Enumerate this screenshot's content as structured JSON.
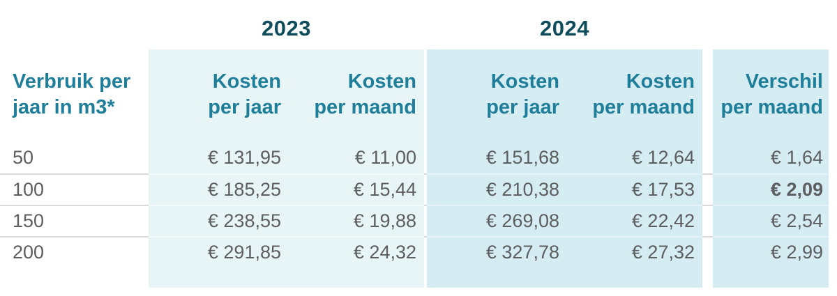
{
  "colors": {
    "block_2023_bg": "#e8f5f7",
    "block_2024_bg": "#d4ecf2",
    "year_label_text": "#0f4d5c",
    "header_text": "#1f7f9a",
    "value_text": "#5d5e60"
  },
  "table": {
    "year_groups": [
      {
        "label": "2023"
      },
      {
        "label": "2024"
      }
    ],
    "headers": {
      "consumption": {
        "line1": "Verbruik per",
        "line2": "jaar in m3*"
      },
      "cost_year_2023": {
        "line1": "Kosten",
        "line2": "per jaar"
      },
      "cost_month_2023": {
        "line1": "Kosten",
        "line2": "per maand"
      },
      "cost_year_2024": {
        "line1": "Kosten",
        "line2": "per jaar"
      },
      "cost_month_2024": {
        "line1": "Kosten",
        "line2": "per maand"
      },
      "difference_month": {
        "line1": "Verschil",
        "line2": "per maand"
      }
    },
    "rows": [
      {
        "consumption": "50",
        "cost_year_2023": "€ 131,95",
        "cost_month_2023": "€ 11,00",
        "cost_year_2024": "€ 151,68",
        "cost_month_2024": "€ 12,64",
        "difference_month": "€ 1,64",
        "difference_bold": false
      },
      {
        "consumption": "100",
        "cost_year_2023": "€ 185,25",
        "cost_month_2023": "€ 15,44",
        "cost_year_2024": "€ 210,38",
        "cost_month_2024": "€ 17,53",
        "difference_month": "€ 2,09",
        "difference_bold": true
      },
      {
        "consumption": "150",
        "cost_year_2023": "€ 238,55",
        "cost_month_2023": "€ 19,88",
        "cost_year_2024": "€ 269,08",
        "cost_month_2024": "€ 22,42",
        "difference_month": "€ 2,54",
        "difference_bold": false
      },
      {
        "consumption": "200",
        "cost_year_2023": "€ 291,85",
        "cost_month_2023": "€ 24,32",
        "cost_year_2024": "€ 327,78",
        "cost_month_2024": "€ 27,32",
        "difference_month": "€ 2,99",
        "difference_bold": false
      }
    ]
  },
  "chart_data": {
    "type": "table",
    "title": "",
    "column_groups": [
      "",
      "2023",
      "2023",
      "2024",
      "2024",
      ""
    ],
    "columns": [
      "Verbruik per jaar in m3*",
      "Kosten per jaar",
      "Kosten per maand",
      "Kosten per jaar",
      "Kosten per maand",
      "Verschil per maand"
    ],
    "rows": [
      [
        50,
        131.95,
        11.0,
        151.68,
        12.64,
        1.64
      ],
      [
        100,
        185.25,
        15.44,
        210.38,
        17.53,
        2.09
      ],
      [
        150,
        238.55,
        19.88,
        269.08,
        22.42,
        2.54
      ],
      [
        200,
        291.85,
        24.32,
        327.78,
        27.32,
        2.99
      ]
    ],
    "currency": "EUR",
    "notes": "Verschil per maand value for 100 m3 (€ 2,09) is shown in bold"
  }
}
